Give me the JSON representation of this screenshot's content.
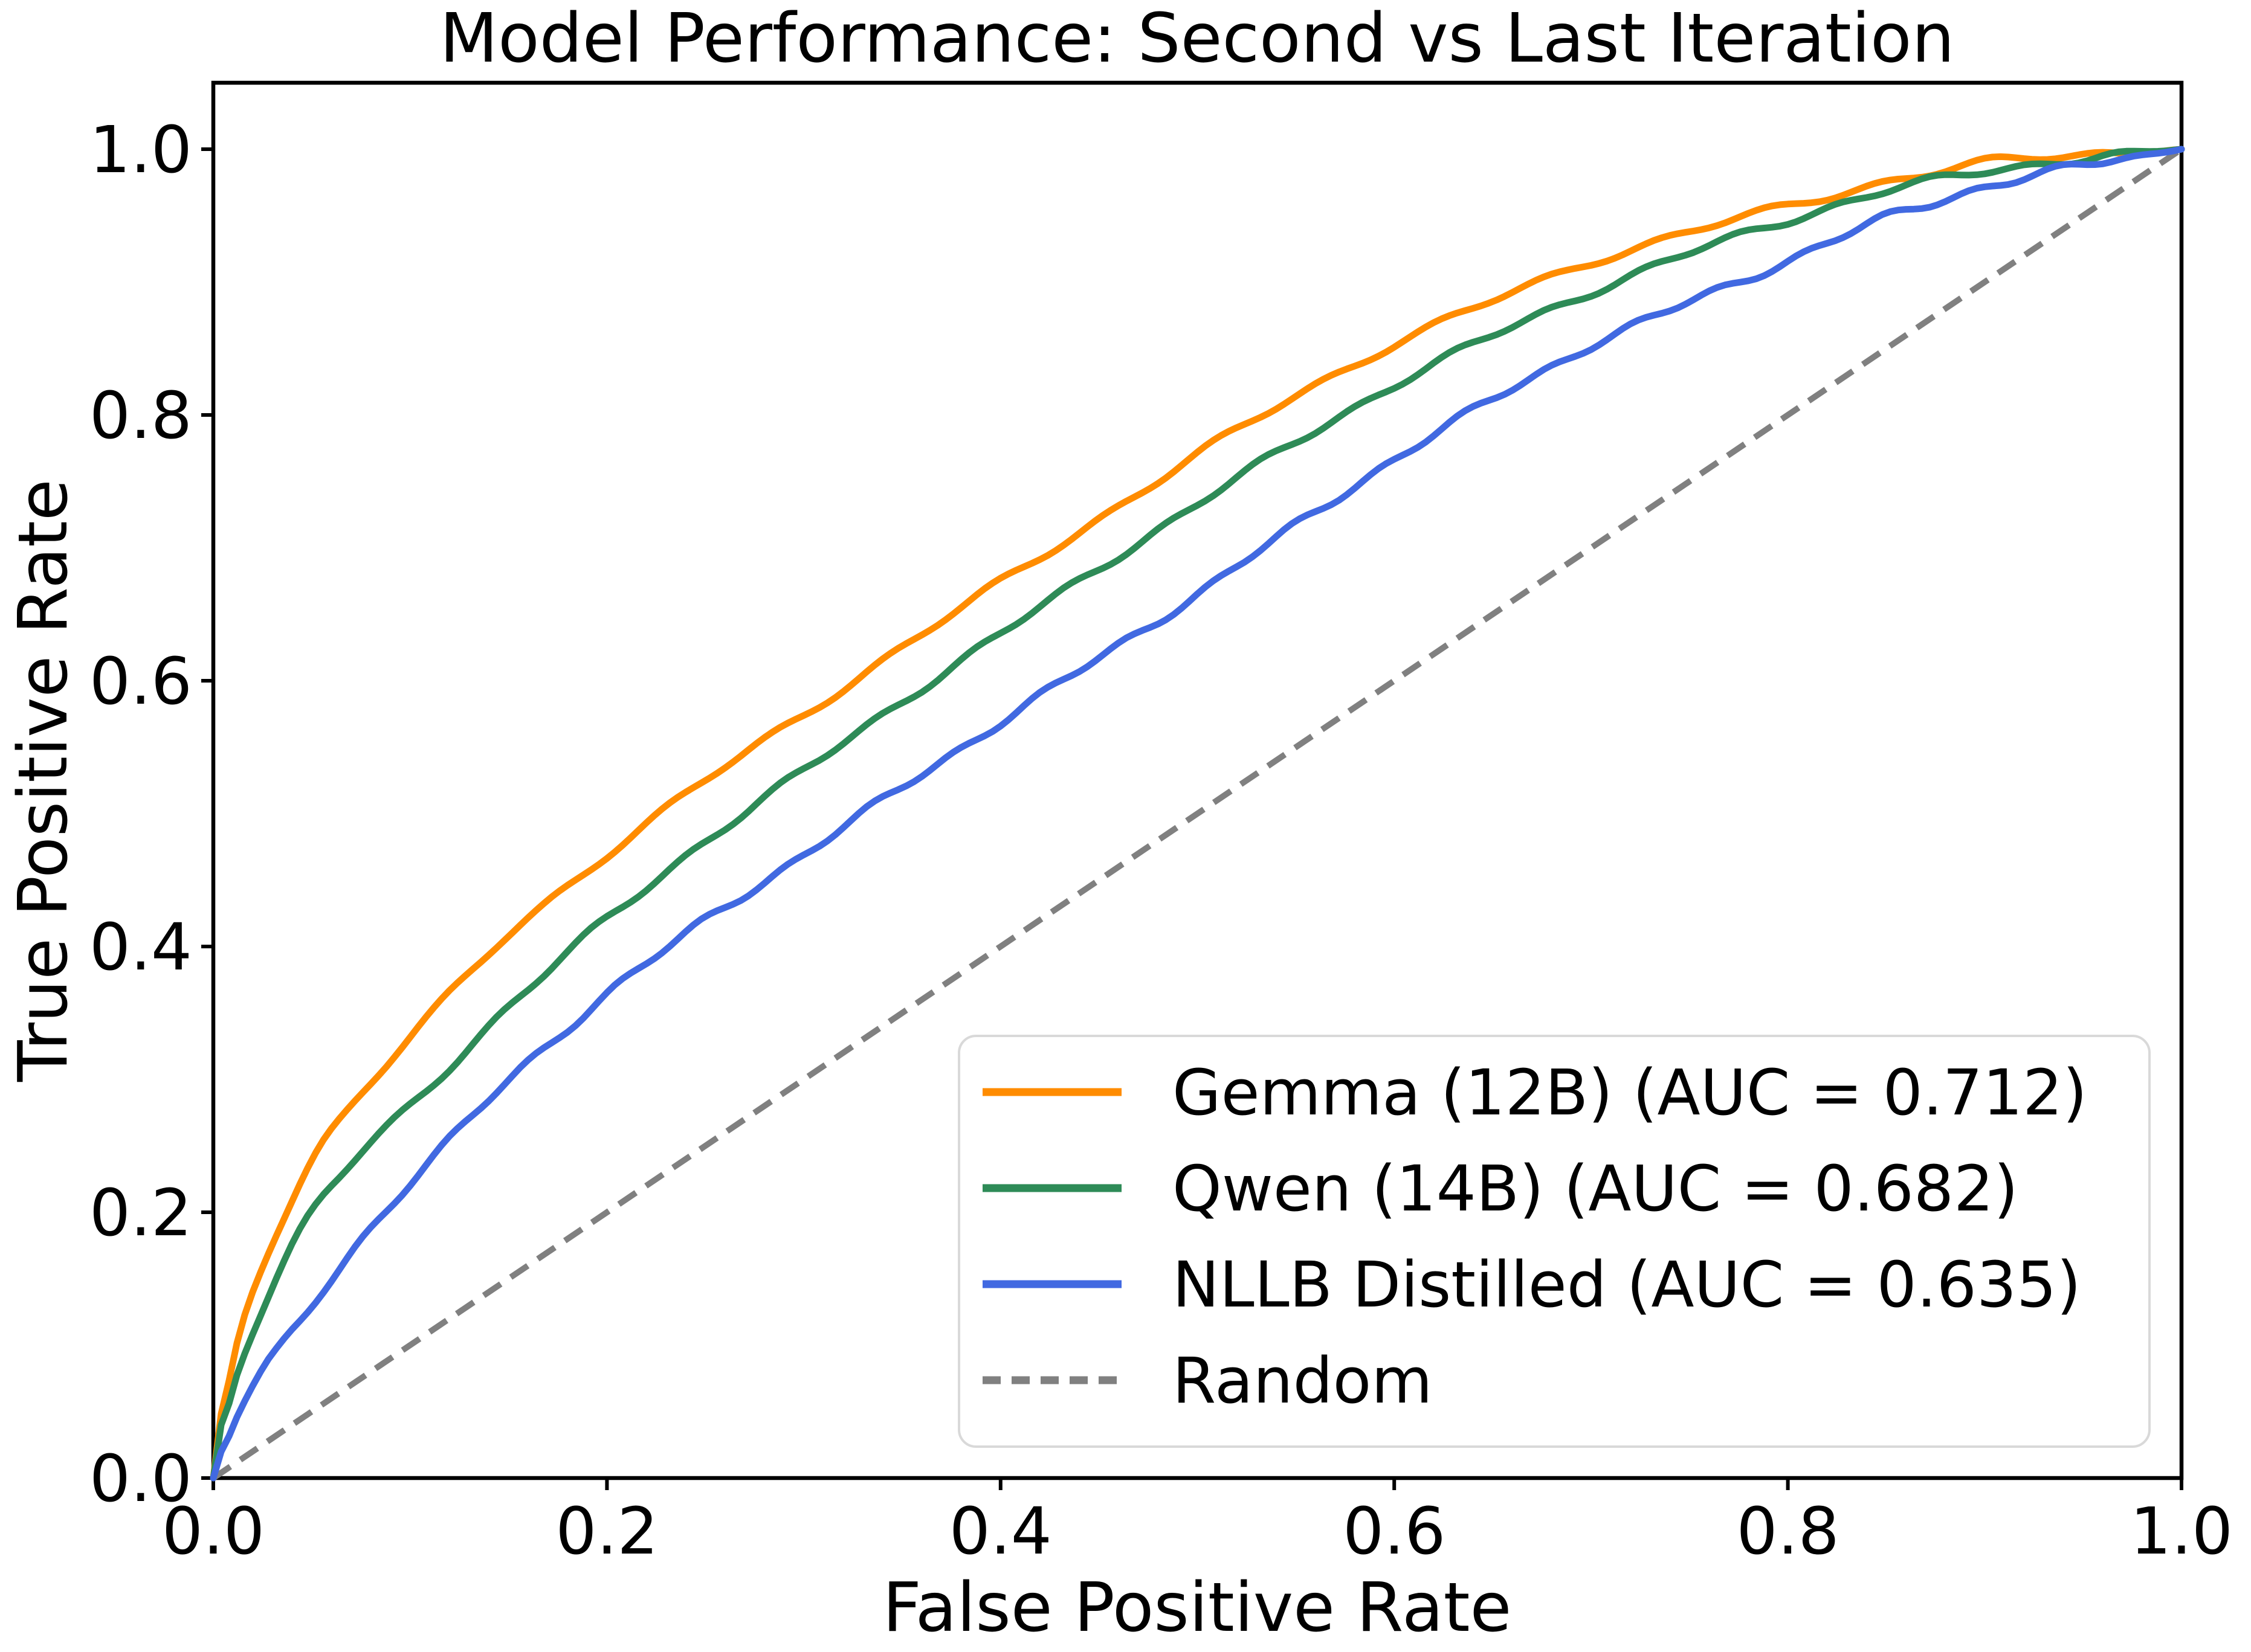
{
  "figure": {
    "background": "#ffffff",
    "plot_border_color": "#000000"
  },
  "chart_data": {
    "type": "line",
    "subtype": "roc-curve",
    "title": "Model Performance: Second vs Last Iteration",
    "xlabel": "False Positive Rate",
    "ylabel": "True Positive Rate",
    "xlim": [
      0.0,
      1.0
    ],
    "ylim": [
      0.0,
      1.05
    ],
    "grid": false,
    "legend_position": "lower right",
    "x_tick_labels": [
      "0.0",
      "0.2",
      "0.4",
      "0.6",
      "0.8",
      "1.0"
    ],
    "y_tick_labels": [
      "0.0",
      "0.2",
      "0.4",
      "0.6",
      "0.8",
      "1.0"
    ],
    "x_tick_values": [
      0.0,
      0.2,
      0.4,
      0.6,
      0.8,
      1.0
    ],
    "y_tick_values": [
      0.0,
      0.2,
      0.4,
      0.6,
      0.8,
      1.0
    ],
    "series": [
      {
        "name": "Gemma (12B)",
        "auc": 0.712,
        "legend_label": "Gemma (12B) (AUC = 0.712)",
        "color": "#FF8C00",
        "line_style": "solid",
        "x": [
          0,
          0.005,
          0.01,
          0.02,
          0.03,
          0.04,
          0.05,
          0.075,
          0.1,
          0.15,
          0.2,
          0.25,
          0.3,
          0.35,
          0.4,
          0.45,
          0.5,
          0.55,
          0.6,
          0.65,
          0.7,
          0.75,
          0.8,
          0.85,
          0.9,
          0.95,
          1.0
        ],
        "y": [
          0,
          0.06,
          0.1,
          0.14,
          0.18,
          0.21,
          0.244,
          0.29,
          0.332,
          0.41,
          0.47,
          0.525,
          0.575,
          0.625,
          0.674,
          0.722,
          0.77,
          0.815,
          0.854,
          0.886,
          0.916,
          0.938,
          0.957,
          0.976,
          0.99,
          0.996,
          1.0
        ]
      },
      {
        "name": "Qwen (14B)",
        "auc": 0.682,
        "legend_label": "Qwen (14B) (AUC = 0.682)",
        "color": "#2E8B57",
        "line_style": "solid",
        "x": [
          0,
          0.005,
          0.01,
          0.02,
          0.03,
          0.04,
          0.05,
          0.075,
          0.1,
          0.15,
          0.2,
          0.25,
          0.3,
          0.35,
          0.4,
          0.45,
          0.5,
          0.55,
          0.6,
          0.65,
          0.7,
          0.75,
          0.8,
          0.85,
          0.9,
          0.95,
          1.0
        ],
        "y": [
          0,
          0.05,
          0.075,
          0.109,
          0.147,
          0.175,
          0.202,
          0.245,
          0.28,
          0.355,
          0.421,
          0.48,
          0.532,
          0.585,
          0.635,
          0.685,
          0.733,
          0.78,
          0.823,
          0.86,
          0.893,
          0.922,
          0.947,
          0.969,
          0.984,
          0.993,
          1.0
        ]
      },
      {
        "name": "NLLB Distilled",
        "auc": 0.635,
        "legend_label": "NLLB Distilled (AUC = 0.635)",
        "color": "#4169E1",
        "line_style": "solid",
        "x": [
          0,
          0.005,
          0.01,
          0.02,
          0.03,
          0.04,
          0.05,
          0.075,
          0.1,
          0.15,
          0.2,
          0.25,
          0.3,
          0.35,
          0.4,
          0.45,
          0.5,
          0.55,
          0.6,
          0.65,
          0.7,
          0.75,
          0.8,
          0.85,
          0.9,
          0.95,
          1.0
        ],
        "y": [
          0,
          0.025,
          0.04,
          0.072,
          0.092,
          0.108,
          0.13,
          0.18,
          0.223,
          0.3,
          0.365,
          0.42,
          0.469,
          0.52,
          0.569,
          0.617,
          0.665,
          0.717,
          0.767,
          0.812,
          0.853,
          0.885,
          0.916,
          0.949,
          0.972,
          0.988,
          1.0
        ]
      }
    ],
    "random_baseline": {
      "legend_label": "Random",
      "color": "#808080",
      "line_style": "dashed",
      "x": [
        0,
        1
      ],
      "y": [
        0,
        1
      ]
    }
  }
}
